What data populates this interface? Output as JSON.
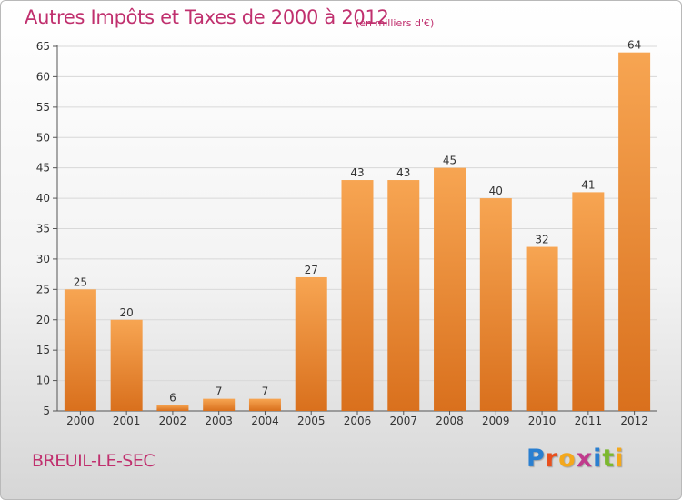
{
  "header": {
    "title": "Autres Impôts et Taxes de 2000 à 2012",
    "subtitle": "(en milliers d'€)"
  },
  "footer": {
    "commune": "BREUIL-LE-SEC",
    "logo_letters": [
      {
        "ch": "P",
        "color": "#2a7fd0"
      },
      {
        "ch": "r",
        "color": "#e8501e"
      },
      {
        "ch": "o",
        "color": "#f4a81c"
      },
      {
        "ch": "x",
        "color": "#c03a8c"
      },
      {
        "ch": "i",
        "color": "#2a7fd0"
      },
      {
        "ch": "t",
        "color": "#7cb82f"
      },
      {
        "ch": "i",
        "color": "#f4a81c"
      }
    ]
  },
  "chart_data": {
    "type": "bar",
    "title": "Autres Impôts et Taxes de 2000 à 2012",
    "subtitle": "(en milliers d'€)",
    "categories": [
      "2000",
      "2001",
      "2002",
      "2003",
      "2004",
      "2005",
      "2006",
      "2007",
      "2008",
      "2009",
      "2010",
      "2011",
      "2012"
    ],
    "values": [
      25,
      20,
      6,
      7,
      7,
      27,
      43,
      43,
      45,
      40,
      32,
      41,
      64
    ],
    "ylim": [
      5,
      65
    ],
    "yticks": [
      5,
      10,
      15,
      20,
      25,
      30,
      35,
      40,
      45,
      50,
      55,
      60,
      65
    ],
    "grid": true,
    "bar_color_top": "#f7a552",
    "bar_color_bottom": "#d9701d"
  }
}
